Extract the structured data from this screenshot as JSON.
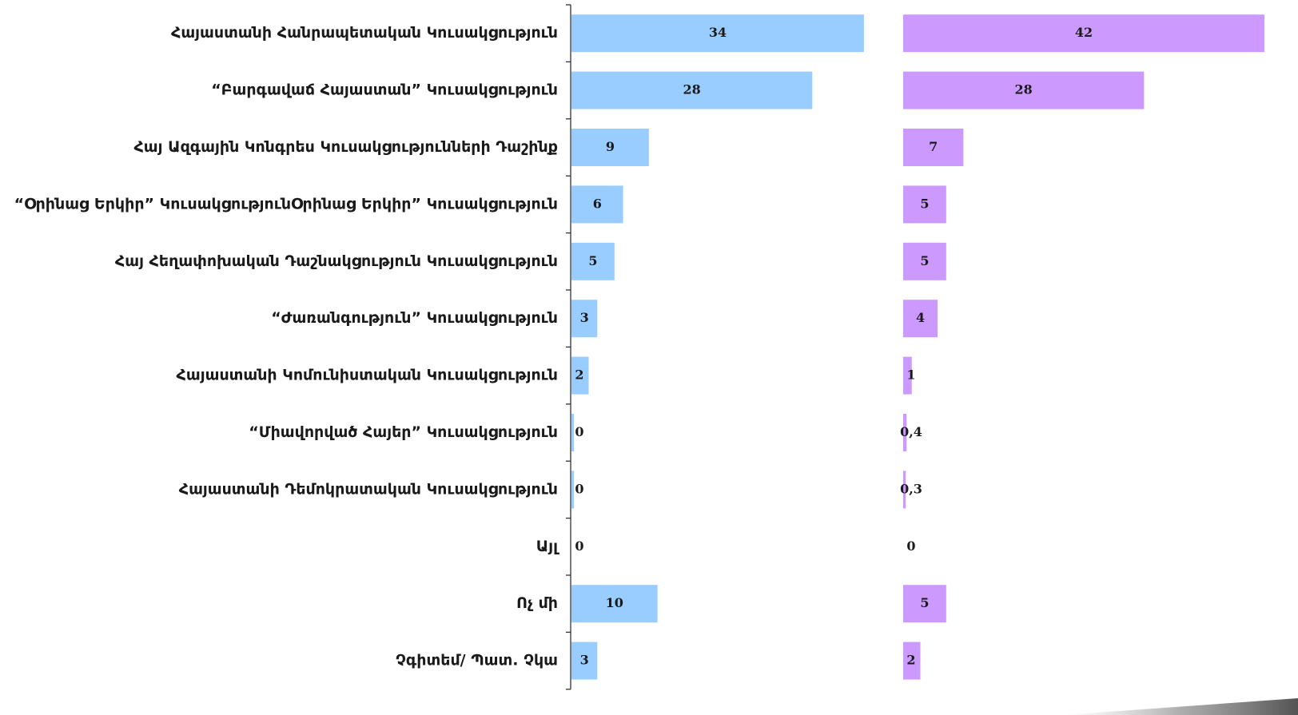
{
  "chart_data": {
    "type": "bar",
    "orientation": "horizontal",
    "layout": "two side-by-side panels sharing category labels",
    "categories": [
      "Հայաստանի Հանրապետական Կուսակցություն",
      "“Բարգավաճ Հայաստան” Կուսակցություն",
      "Հայ Ազգային Կոնգրես Կուսակցությունների Դաշինք",
      "“Օրինաց Երկիր” ԿուսակցությունՕրինաց Երկիր” Կուսակցություն",
      "Հայ Հեղափոխական Դաշնակցություն Կուսակցություն",
      "“Ժառանգություն” Կուսակցություն",
      "Հայաստանի Կոմունիստական Կուսակցություն",
      "“Միավորված Հայեր” Կուսակցություն",
      "Հայաստանի Դեմոկրատական Կուսակցություն",
      "Այլ",
      "Ոչ մի",
      "Չգիտեմ/ Պատ. Չկա"
    ],
    "series": [
      {
        "color": "#99ccff",
        "values": [
          34,
          28,
          9,
          6,
          5,
          3,
          2,
          0.3,
          0.3,
          0,
          10,
          3
        ],
        "labels": [
          "34",
          "28",
          "9",
          "6",
          "5",
          "3",
          "2",
          "0",
          "0",
          "0",
          "10",
          "3"
        ]
      },
      {
        "color": "#cc99ff",
        "values": [
          42,
          28,
          7,
          5,
          5,
          4,
          1,
          0.4,
          0.3,
          0,
          5,
          2
        ],
        "labels": [
          "42",
          "28",
          "7",
          "5",
          "5",
          "4",
          "1",
          "0,4",
          "0,3",
          "0",
          "5",
          "2"
        ]
      }
    ],
    "xlim": [
      0,
      42
    ],
    "grid": false,
    "legend": "none"
  },
  "colors": {
    "axis": "#333333",
    "text": "#1a1a1a",
    "series1": "#99ccff",
    "series2": "#cc99ff"
  }
}
